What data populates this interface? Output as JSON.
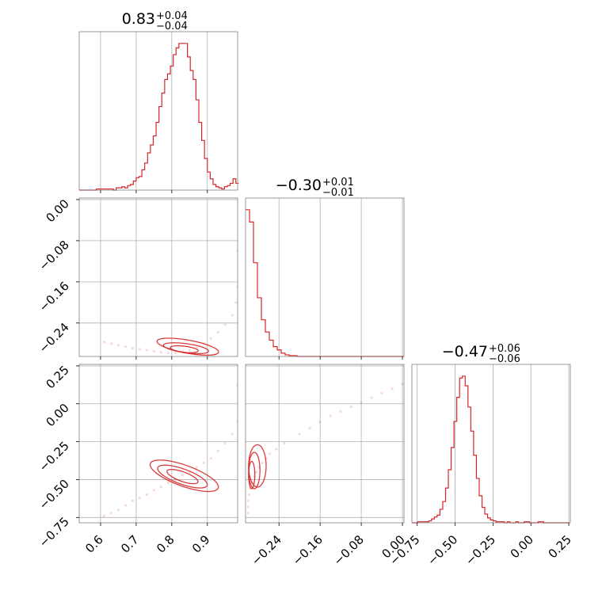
{
  "chart_data": {
    "type": "corner",
    "color": "#d62728",
    "grid": true,
    "params": [
      {
        "title_value": "0.83",
        "title_plus": "+0.04",
        "title_minus": "−0.04",
        "range": [
          0.54,
          0.985
        ],
        "ticks": [
          0.6,
          0.7,
          0.8,
          0.9
        ],
        "tick_labels": [
          "0.6",
          "0.7",
          "0.8",
          "0.9"
        ],
        "hist": {
          "x0": 0.54,
          "step": 0.008,
          "counts": [
            0,
            0,
            0,
            0,
            0,
            0,
            1,
            1,
            1,
            1,
            1,
            1,
            0,
            2,
            2,
            3,
            2,
            4,
            5,
            8,
            11,
            12,
            18,
            24,
            33,
            40,
            48,
            60,
            74,
            86,
            98,
            103,
            110,
            120,
            126,
            130,
            130,
            130,
            118,
            106,
            98,
            80,
            60,
            44,
            28,
            16,
            10,
            5,
            3,
            2,
            1,
            3,
            4,
            6,
            10,
            6
          ]
        }
      },
      {
        "title_value": "−0.30",
        "title_plus": "+0.01",
        "title_minus": "−0.01",
        "range": [
          -0.305,
          0.003
        ],
        "ticks": [
          -0.24,
          -0.16,
          -0.08,
          0.0
        ],
        "tick_labels": [
          "−0.24",
          "−0.16",
          "−0.08",
          "0.00"
        ],
        "hist": {
          "x0": -0.305,
          "step": 0.0077,
          "counts": [
            180,
            165,
            115,
            72,
            45,
            30,
            20,
            12,
            8,
            4,
            2,
            1,
            1,
            0,
            0,
            0,
            0,
            0,
            0,
            0,
            0,
            0,
            0,
            0,
            0,
            0,
            0,
            0,
            0,
            0,
            0,
            0,
            0,
            0,
            0,
            0,
            0,
            0,
            0,
            0
          ]
        }
      },
      {
        "title_value": "−0.47",
        "title_plus": "+0.06",
        "title_minus": "−0.06",
        "range": [
          -0.785,
          0.26
        ],
        "ticks": [
          -0.75,
          -0.5,
          -0.25,
          0.0,
          0.25
        ],
        "tick_labels": [
          "−0.75",
          "−0.50",
          "−0.25",
          "0.00",
          "0.25"
        ],
        "hist": {
          "x0": -0.785,
          "step": 0.0185,
          "counts": [
            0,
            0,
            1,
            1,
            1,
            1,
            2,
            4,
            6,
            8,
            14,
            22,
            36,
            55,
            78,
            105,
            130,
            150,
            152,
            142,
            120,
            95,
            70,
            46,
            28,
            16,
            9,
            5,
            3,
            2,
            1,
            1,
            1,
            0,
            1,
            0,
            0,
            1,
            0,
            0,
            1,
            1,
            0,
            0,
            0,
            1,
            1,
            0,
            0,
            0,
            0,
            0,
            0,
            0,
            0,
            0
          ]
        }
      }
    ],
    "pairs": [
      {
        "x_param": 0,
        "y_param": 1,
        "points": [
          [
            0.61,
            -0.277
          ],
          [
            0.63,
            -0.28
          ],
          [
            0.65,
            -0.283
          ],
          [
            0.67,
            -0.286
          ],
          [
            0.69,
            -0.289
          ],
          [
            0.71,
            -0.291
          ],
          [
            0.73,
            -0.293
          ],
          [
            0.75,
            -0.295
          ],
          [
            0.77,
            -0.297
          ],
          [
            0.79,
            -0.298
          ],
          [
            0.81,
            -0.298
          ],
          [
            0.83,
            -0.296
          ],
          [
            0.85,
            -0.293
          ],
          [
            0.87,
            -0.288
          ],
          [
            0.89,
            -0.28
          ],
          [
            0.91,
            -0.27
          ],
          [
            0.93,
            -0.258
          ],
          [
            0.95,
            -0.243
          ],
          [
            0.97,
            -0.225
          ],
          [
            0.98,
            -0.2
          ],
          [
            0.985,
            -0.17
          ],
          [
            0.985,
            -0.1
          ]
        ],
        "contours": [
          {
            "cx": 0.835,
            "cy": -0.291,
            "rx": 0.04,
            "ry": 0.006,
            "rot": -0.18
          },
          {
            "cx": 0.84,
            "cy": -0.289,
            "rx": 0.065,
            "ry": 0.009,
            "rot": -0.22
          },
          {
            "cx": 0.845,
            "cy": -0.286,
            "rx": 0.09,
            "ry": 0.013,
            "rot": -0.28
          }
        ]
      },
      {
        "x_param": 0,
        "y_param": 2,
        "points": [
          [
            0.61,
            -0.74
          ],
          [
            0.63,
            -0.72
          ],
          [
            0.65,
            -0.7
          ],
          [
            0.67,
            -0.67
          ],
          [
            0.69,
            -0.64
          ],
          [
            0.71,
            -0.62
          ],
          [
            0.73,
            -0.6
          ],
          [
            0.75,
            -0.57
          ],
          [
            0.77,
            -0.55
          ],
          [
            0.79,
            -0.52
          ],
          [
            0.81,
            -0.5
          ],
          [
            0.83,
            -0.47
          ],
          [
            0.85,
            -0.45
          ],
          [
            0.87,
            -0.42
          ],
          [
            0.89,
            -0.39
          ],
          [
            0.91,
            -0.36
          ],
          [
            0.93,
            -0.31
          ],
          [
            0.95,
            -0.26
          ],
          [
            0.97,
            -0.2
          ],
          [
            0.985,
            -0.12
          ],
          [
            0.985,
            0.12
          ]
        ],
        "contours": [
          {
            "cx": 0.83,
            "cy": -0.48,
            "rx": 0.05,
            "ry": 0.025,
            "rot": -0.6
          },
          {
            "cx": 0.83,
            "cy": -0.48,
            "rx": 0.08,
            "ry": 0.04,
            "rot": -0.6
          },
          {
            "cx": 0.835,
            "cy": -0.475,
            "rx": 0.11,
            "ry": 0.055,
            "rot": -0.6
          }
        ]
      },
      {
        "x_param": 1,
        "y_param": 2,
        "points": [
          [
            -0.3,
            -0.72
          ],
          [
            -0.3,
            -0.68
          ],
          [
            -0.3,
            -0.64
          ],
          [
            -0.298,
            -0.6
          ],
          [
            -0.296,
            -0.56
          ],
          [
            -0.292,
            -0.52
          ],
          [
            -0.288,
            -0.48
          ],
          [
            -0.284,
            -0.45
          ],
          [
            -0.278,
            -0.42
          ],
          [
            -0.272,
            -0.39
          ],
          [
            -0.265,
            -0.36
          ],
          [
            -0.258,
            -0.33
          ],
          [
            -0.245,
            -0.3
          ],
          [
            -0.23,
            -0.26
          ],
          [
            -0.2,
            -0.2
          ],
          [
            -0.18,
            -0.16
          ],
          [
            -0.16,
            -0.12
          ],
          [
            -0.14,
            -0.08
          ],
          [
            -0.12,
            -0.05
          ],
          [
            -0.1,
            -0.02
          ],
          [
            -0.08,
            0.01
          ],
          [
            -0.06,
            0.04
          ],
          [
            -0.04,
            0.07
          ],
          [
            -0.02,
            0.1
          ],
          [
            0.0,
            0.13
          ]
        ],
        "contours": [
          {
            "cx": -0.293,
            "cy": -0.47,
            "rx": 0.006,
            "ry": 0.09,
            "rot": 0.0
          },
          {
            "cx": -0.288,
            "cy": -0.44,
            "rx": 0.011,
            "ry": 0.12,
            "rot": 0.0
          },
          {
            "cx": -0.282,
            "cy": -0.41,
            "rx": 0.017,
            "ry": 0.14,
            "rot": 0.0
          }
        ]
      }
    ]
  }
}
